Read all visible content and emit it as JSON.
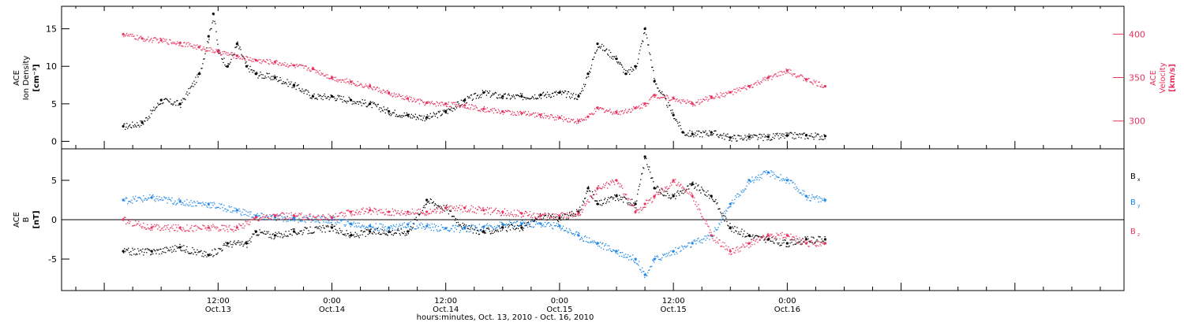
{
  "colors": {
    "black": "#000000",
    "pink": "#E8325F",
    "blue": "#1E88E8"
  },
  "x_axis": {
    "label": "hours:minutes, Oct. 13, 2010 - Oct. 16, 2010",
    "range_hours": [
      -4.5,
      107.5
    ],
    "ticks": [
      {
        "hours": 12,
        "time": "12:00",
        "date": "Oct.13"
      },
      {
        "hours": 24,
        "time": "0:00",
        "date": "Oct.14"
      },
      {
        "hours": 36,
        "time": "12:00",
        "date": "Oct.14"
      },
      {
        "hours": 48,
        "time": "0:00",
        "date": "Oct.15"
      },
      {
        "hours": 60,
        "time": "12:00",
        "date": "Oct.15"
      },
      {
        "hours": 72,
        "time": "0:00",
        "date": "Oct.16"
      }
    ]
  },
  "chart_data": [
    {
      "type": "scatter",
      "panel": "top",
      "ylabel_lines": [
        "ACE",
        "Ion Density",
        "[cm⁻³]"
      ],
      "ylabel_right_lines": [
        "ACE",
        "Velocity",
        "[km/s]"
      ],
      "ylim": [
        -1,
        18
      ],
      "yticks": [
        "0",
        "5",
        "10",
        "15"
      ],
      "ylim_right": [
        268,
        432
      ],
      "yticks_right": [
        "300",
        "350",
        "400"
      ],
      "series": [
        {
          "name": "",
          "axis": "left",
          "color": "#000000",
          "x": [
            2,
            4,
            6,
            8,
            10,
            11,
            11.5,
            12,
            13,
            14,
            15,
            16,
            18,
            20,
            22,
            24,
            26,
            28,
            30,
            32,
            34,
            36,
            38,
            40,
            42,
            44,
            46,
            48,
            50,
            51,
            52,
            54,
            55,
            56,
            57,
            58,
            60,
            61,
            62,
            64,
            66,
            68,
            70,
            72,
            74,
            76
          ],
          "y": [
            2,
            2.5,
            5.5,
            5,
            9,
            14,
            17,
            12,
            10,
            13,
            10,
            9,
            8.5,
            7.5,
            6,
            6,
            5.5,
            5,
            4,
            3.5,
            3.2,
            4,
            5.5,
            6.5,
            6,
            6,
            6.2,
            6.5,
            6,
            9,
            13,
            11,
            9,
            10,
            15,
            8,
            3.5,
            1.2,
            1.0,
            1.2,
            0.5,
            0.6,
            0.6,
            0.8,
            0.8,
            0.7
          ]
        },
        {
          "name": "",
          "axis": "right",
          "color": "#E8325F",
          "x": [
            2,
            4,
            6,
            8,
            10,
            12,
            14,
            16,
            18,
            20,
            22,
            24,
            26,
            28,
            30,
            32,
            34,
            36,
            38,
            40,
            42,
            44,
            46,
            48,
            50,
            51,
            52,
            54,
            56,
            57,
            58,
            60,
            62,
            64,
            66,
            68,
            70,
            72,
            74,
            76
          ],
          "y": [
            400,
            395,
            393,
            390,
            385,
            380,
            375,
            370,
            368,
            364,
            360,
            350,
            345,
            340,
            332,
            326,
            321,
            320,
            318,
            314,
            311,
            309,
            307,
            304,
            300,
            305,
            315,
            310,
            315,
            320,
            330,
            326,
            320,
            328,
            333,
            340,
            350,
            358,
            348,
            340
          ]
        }
      ]
    },
    {
      "type": "scatter",
      "panel": "bottom",
      "ylabel_lines": [
        "ACE",
        "B",
        "[nT]"
      ],
      "ylim": [
        -9,
        9
      ],
      "yticks": [
        "-5",
        "0",
        "5"
      ],
      "zero_line": true,
      "series": [
        {
          "name": "B",
          "subscript": "x",
          "color": "#000000",
          "x": [
            2,
            5,
            8,
            11,
            13,
            15,
            16,
            18,
            20,
            24,
            26,
            28,
            30,
            32,
            34,
            36,
            38,
            40,
            42,
            44,
            46,
            48,
            50,
            51,
            52,
            54,
            56,
            57,
            58,
            60,
            62,
            64,
            66,
            68,
            70,
            72,
            74,
            76
          ],
          "y": [
            -4,
            -4,
            -3.5,
            -4.5,
            -3,
            -3,
            -1.5,
            -2,
            -1.5,
            -1,
            -2,
            -1.5,
            -1.5,
            -1.5,
            2.5,
            1.5,
            -1,
            -1.5,
            -1,
            -1,
            0.5,
            0.2,
            1,
            4,
            2,
            3,
            2,
            8,
            4,
            3,
            4.5,
            3,
            -1,
            -2,
            -2.5,
            -3,
            -2.5,
            -2.5
          ]
        },
        {
          "name": "B",
          "subscript": "y",
          "color": "#1E88E8",
          "x": [
            2,
            5,
            8,
            11,
            14,
            16,
            18,
            20,
            24,
            26,
            28,
            30,
            32,
            34,
            36,
            38,
            40,
            42,
            44,
            46,
            48,
            50,
            52,
            54,
            56,
            57,
            58,
            60,
            62,
            64,
            66,
            68,
            70,
            72,
            74,
            76
          ],
          "y": [
            2.5,
            2.8,
            2.3,
            2,
            1.2,
            0.5,
            0.3,
            0.2,
            0,
            -0.5,
            -0.8,
            -1,
            -0.6,
            -0.8,
            -1.1,
            -1.1,
            -0.9,
            -0.6,
            -0.5,
            -0.5,
            -0.8,
            -2,
            -3,
            -4,
            -5,
            -7,
            -5,
            -4,
            -3,
            -2,
            2,
            5,
            6,
            5,
            3,
            2.5
          ]
        },
        {
          "name": "B",
          "subscript": "z",
          "color": "#E8325F",
          "x": [
            2,
            5,
            8,
            11,
            14,
            16,
            18,
            20,
            24,
            26,
            28,
            30,
            32,
            34,
            36,
            38,
            40,
            42,
            44,
            46,
            48,
            50,
            52,
            54,
            56,
            57,
            58,
            60,
            62,
            64,
            66,
            68,
            70,
            72,
            74,
            76
          ],
          "y": [
            0,
            -1,
            -1,
            -1,
            -1,
            0.3,
            0.5,
            0.5,
            0.3,
            1,
            1.2,
            1,
            1,
            1,
            1.5,
            1.5,
            1.2,
            1,
            0.8,
            0.5,
            0.5,
            0.8,
            4,
            5,
            1,
            2,
            3,
            5,
            3,
            -2,
            -4,
            -3,
            -2,
            -2,
            -3,
            -3
          ]
        }
      ]
    }
  ]
}
